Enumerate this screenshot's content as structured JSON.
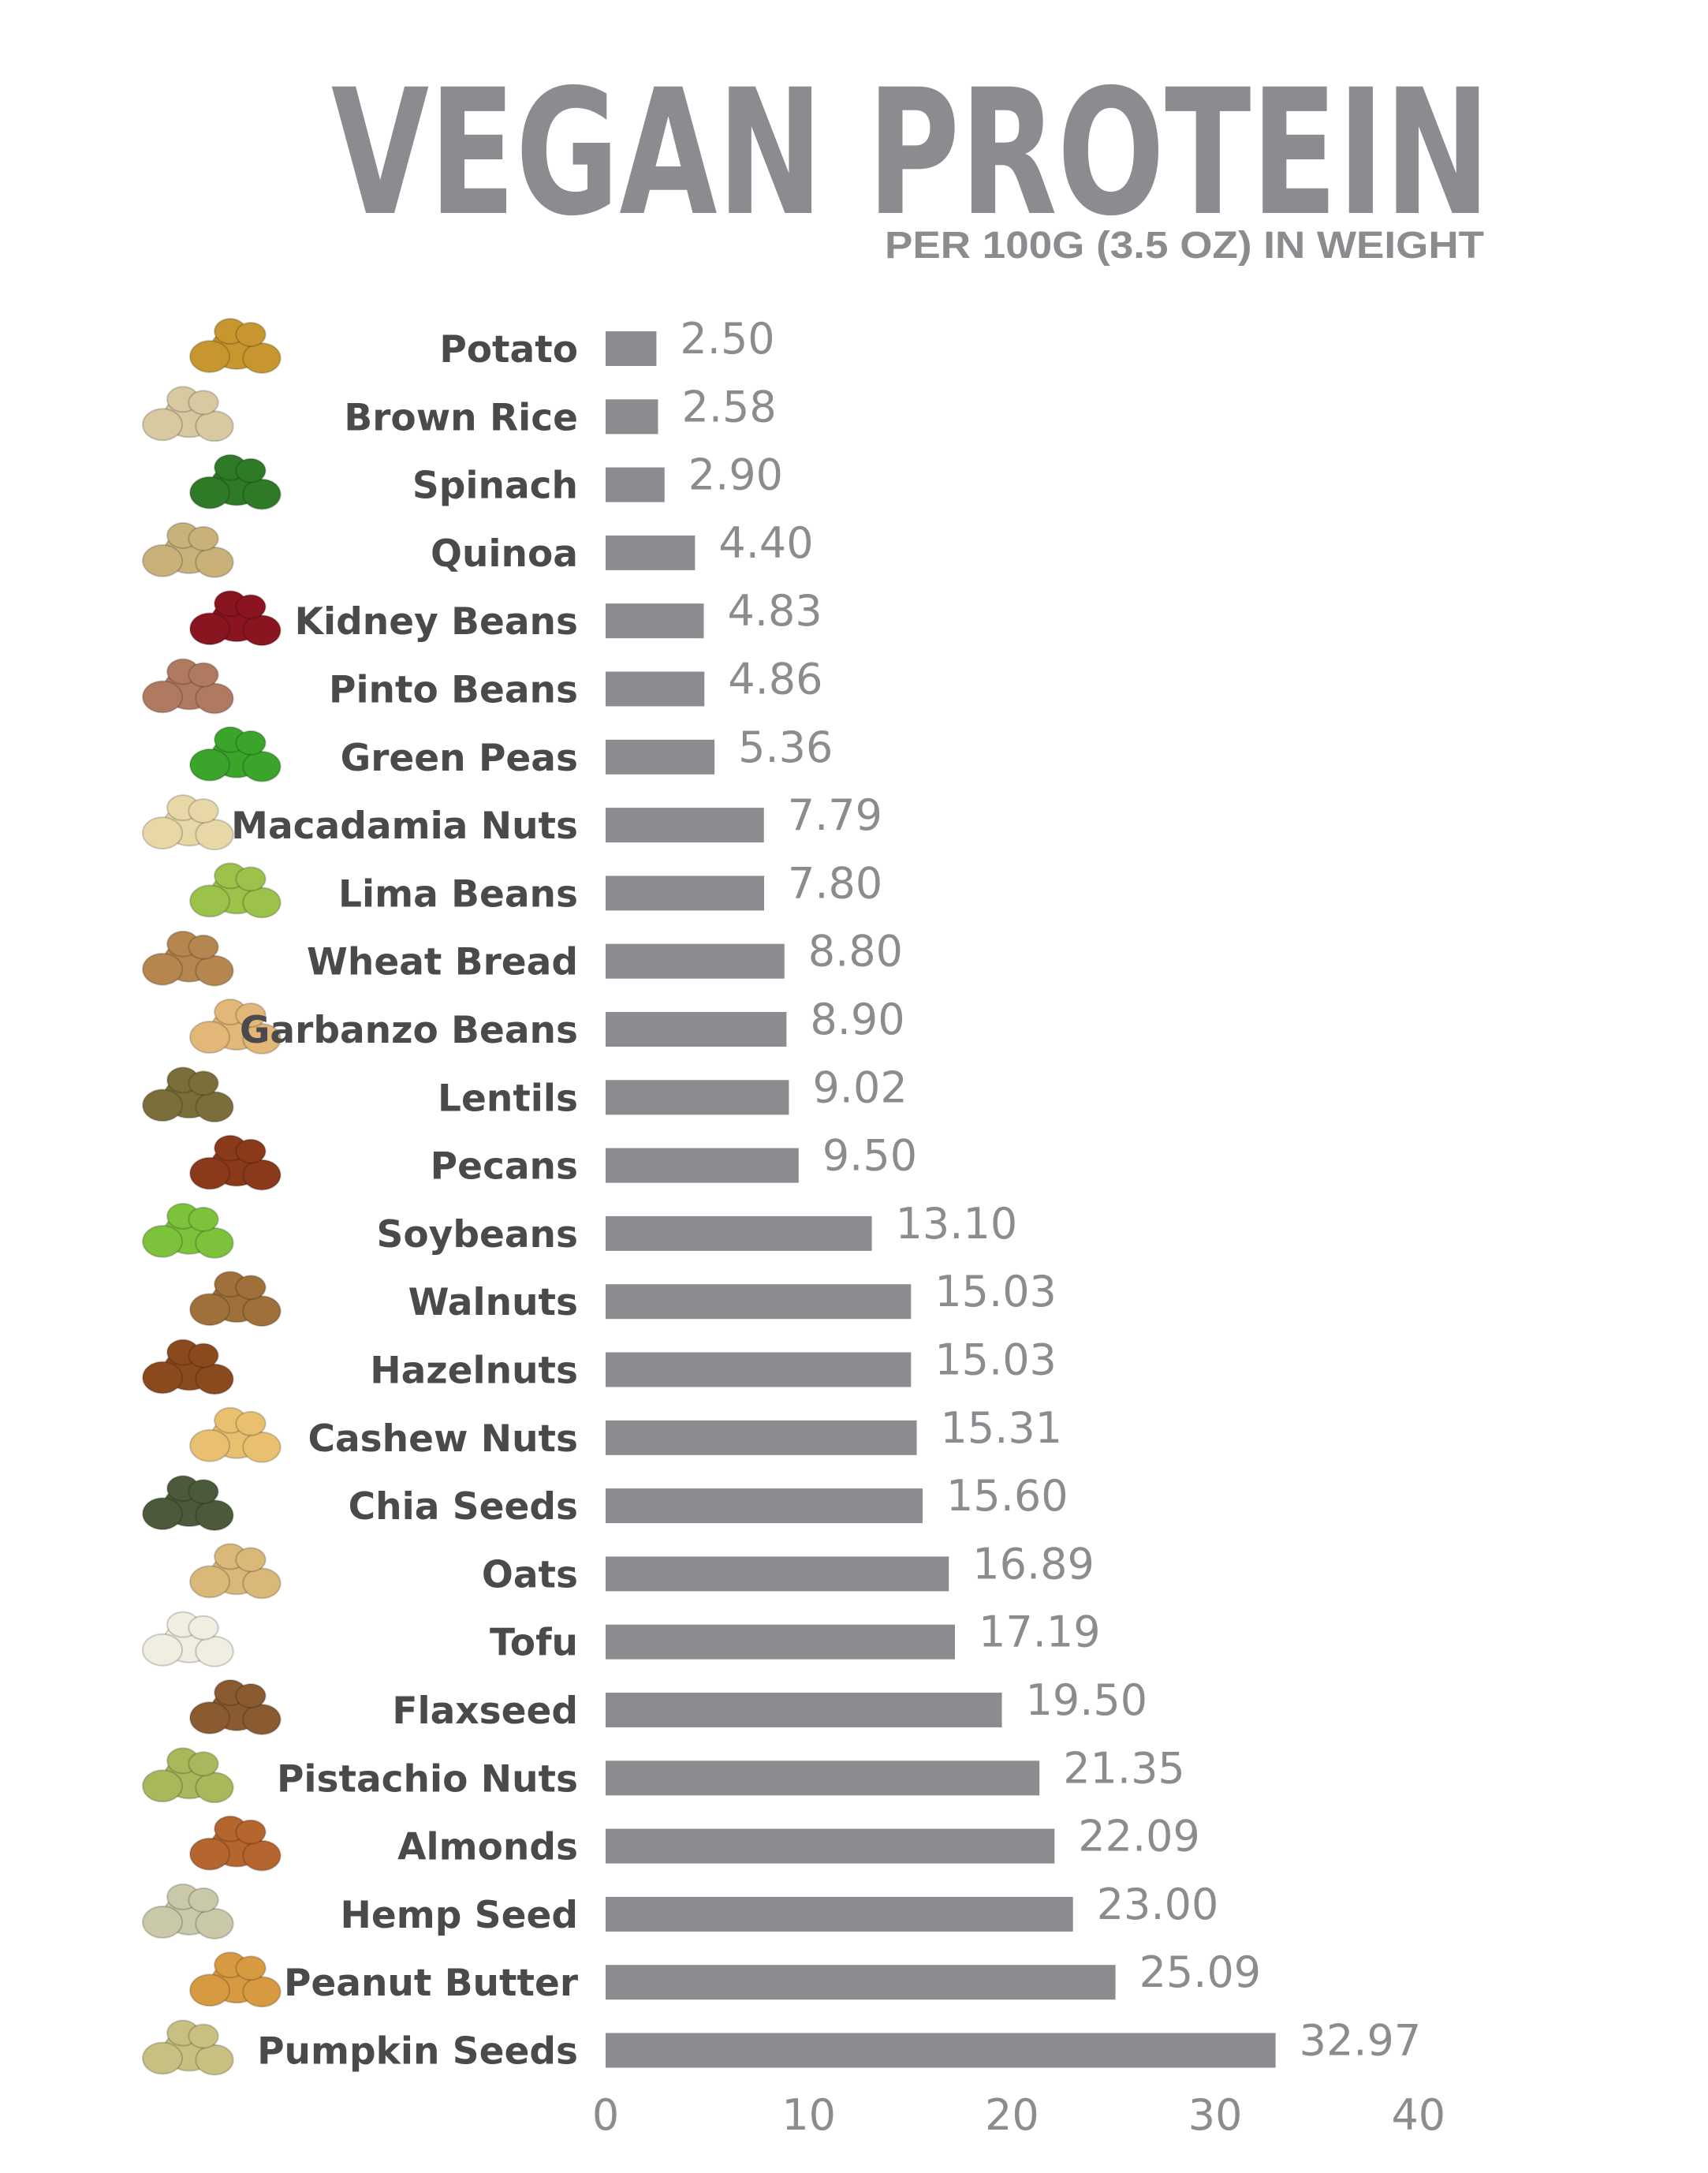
{
  "chart_data": {
    "type": "bar",
    "orientation": "horizontal",
    "title": "VEGAN PROTEIN",
    "subtitle": "PER  100G (3.5 OZ) IN WEIGHT",
    "categories": [
      "Potato",
      "Brown Rice",
      "Spinach",
      "Quinoa",
      "Kidney Beans",
      "Pinto Beans",
      "Green Peas",
      "Macadamia Nuts",
      "Lima Beans",
      "Wheat Bread",
      "Garbanzo Beans",
      "Lentils",
      "Pecans",
      "Soybeans",
      "Walnuts",
      "Hazelnuts",
      "Cashew Nuts",
      "Chia Seeds",
      "Oats",
      "Tofu",
      "Flaxseed",
      "Pistachio Nuts",
      "Almonds",
      "Hemp Seed",
      "Peanut Butter",
      "Pumpkin Seeds"
    ],
    "values": [
      2.5,
      2.58,
      2.9,
      4.4,
      4.83,
      4.86,
      5.36,
      7.79,
      7.8,
      8.8,
      8.9,
      9.02,
      9.5,
      13.1,
      15.03,
      15.03,
      15.31,
      15.6,
      16.89,
      17.19,
      19.5,
      21.35,
      22.09,
      23.0,
      25.09,
      32.97
    ],
    "value_labels": [
      "2.50",
      "2.58",
      "2.90",
      "4.40",
      "4.83",
      "4.86",
      "5.36",
      "7.79",
      "7.80",
      "8.80",
      "8.90",
      "9.02",
      "9.50",
      "13.10",
      "15.03",
      "15.03",
      "15.31",
      "15.60",
      "16.89",
      "17.19",
      "19.50",
      "21.35",
      "22.09",
      "23.00",
      "25.09",
      "32.97"
    ],
    "xlim": [
      0,
      40
    ],
    "xticks": [
      "0",
      "10",
      "20",
      "30",
      "40"
    ],
    "grid": false,
    "legend": "none",
    "bar_color": "#8c8c90",
    "icons": [
      "potato-icon",
      "brown-rice-icon",
      "spinach-icon",
      "quinoa-icon",
      "kidney-beans-icon",
      "pinto-beans-icon",
      "green-peas-icon",
      "macadamia-nuts-icon",
      "lima-beans-icon",
      "wheat-bread-icon",
      "garbanzo-beans-icon",
      "lentils-icon",
      "pecans-icon",
      "soybeans-icon",
      "walnuts-icon",
      "hazelnuts-icon",
      "cashew-nuts-icon",
      "chia-seeds-icon",
      "oats-icon",
      "tofu-icon",
      "flaxseed-icon",
      "pistachio-nuts-icon",
      "almonds-icon",
      "hemp-seed-icon",
      "peanut-butter-icon",
      "pumpkin-seeds-icon"
    ],
    "icon_colors": [
      "#c8962e",
      "#d9c9a0",
      "#2f7a26",
      "#c9b27a",
      "#8a1420",
      "#b07a60",
      "#3aa52a",
      "#e8d8a8",
      "#9cc24a",
      "#b5874f",
      "#e2b778",
      "#7a6f3a",
      "#8a3a1a",
      "#7cc23a",
      "#a0703a",
      "#8a4a1e",
      "#e8c070",
      "#4a5a3a",
      "#d9b878",
      "#f0eee0",
      "#8a5a30",
      "#a8b85a",
      "#b5652e",
      "#c9c8a8",
      "#d89a40",
      "#c8c080"
    ]
  }
}
